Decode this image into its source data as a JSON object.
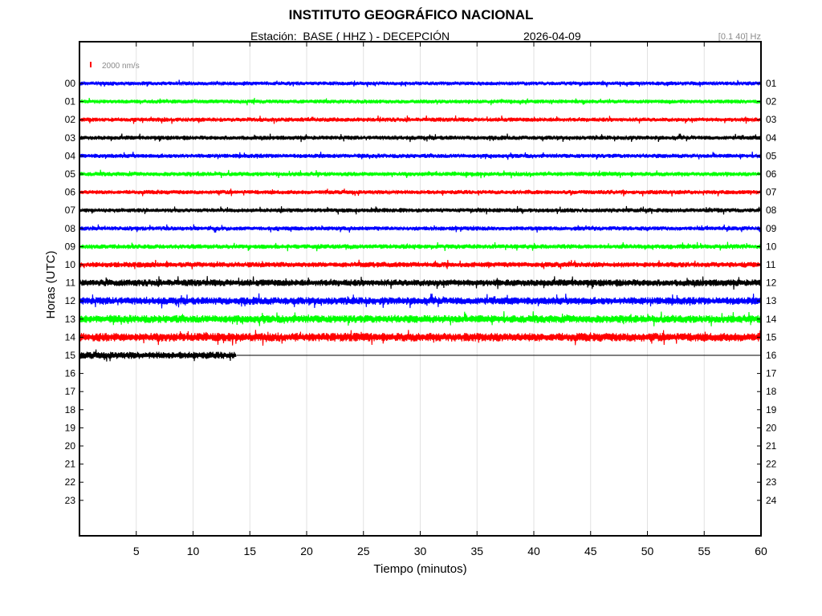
{
  "header": {
    "title": "INSTITUTO GEOGRÁFICO NACIONAL",
    "station": "Estación:  BASE ( HHZ ) - DECEPCIÓN",
    "date": "2026-04-09",
    "filter": "[0.1 40] Hz"
  },
  "chart_data": {
    "type": "line",
    "title": "INSTITUTO GEOGRÁFICO NACIONAL",
    "xlabel": "Tiempo (minutos)",
    "ylabel": "Horas (UTC)",
    "xlim": [
      0,
      60
    ],
    "x_ticks": [
      5,
      10,
      15,
      20,
      25,
      30,
      35,
      40,
      45,
      50,
      55,
      60
    ],
    "x_tick_labels": [
      "5",
      "10",
      "15",
      "20",
      "25",
      "30",
      "35",
      "40",
      "45",
      "50",
      "55",
      "60"
    ],
    "left_hour_labels": [
      "00",
      "01",
      "02",
      "03",
      "04",
      "05",
      "06",
      "07",
      "08",
      "09",
      "10",
      "11",
      "12",
      "13",
      "14",
      "15",
      "16",
      "17",
      "18",
      "19",
      "20",
      "21",
      "22",
      "23"
    ],
    "right_hour_labels": [
      "01",
      "02",
      "03",
      "04",
      "05",
      "06",
      "07",
      "08",
      "09",
      "10",
      "11",
      "12",
      "13",
      "14",
      "15",
      "16",
      "17",
      "18",
      "19",
      "20",
      "21",
      "22",
      "23",
      "24"
    ],
    "grid": "vertical",
    "scale_bar": {
      "label": "2000 nm/s",
      "color": "#ff0000"
    },
    "colors": [
      "#0000ff",
      "#00ff00",
      "#ff0000",
      "#000000"
    ],
    "traces": [
      {
        "hour": "00",
        "color": "#0000ff",
        "end_minute": 60,
        "relative_amplitude": 0.55
      },
      {
        "hour": "01",
        "color": "#00ff00",
        "end_minute": 60,
        "relative_amplitude": 0.55
      },
      {
        "hour": "02",
        "color": "#ff0000",
        "end_minute": 60,
        "relative_amplitude": 0.6
      },
      {
        "hour": "03",
        "color": "#000000",
        "end_minute": 60,
        "relative_amplitude": 0.6
      },
      {
        "hour": "04",
        "color": "#0000ff",
        "end_minute": 60,
        "relative_amplitude": 0.6
      },
      {
        "hour": "05",
        "color": "#00ff00",
        "end_minute": 60,
        "relative_amplitude": 0.6
      },
      {
        "hour": "06",
        "color": "#ff0000",
        "end_minute": 60,
        "relative_amplitude": 0.6
      },
      {
        "hour": "07",
        "color": "#000000",
        "end_minute": 60,
        "relative_amplitude": 0.6
      },
      {
        "hour": "08",
        "color": "#0000ff",
        "end_minute": 60,
        "relative_amplitude": 0.6
      },
      {
        "hour": "09",
        "color": "#00ff00",
        "end_minute": 60,
        "relative_amplitude": 0.65
      },
      {
        "hour": "10",
        "color": "#ff0000",
        "end_minute": 60,
        "relative_amplitude": 0.75
      },
      {
        "hour": "11",
        "color": "#000000",
        "end_minute": 60,
        "relative_amplitude": 0.95
      },
      {
        "hour": "12",
        "color": "#0000ff",
        "end_minute": 60,
        "relative_amplitude": 1.05
      },
      {
        "hour": "13",
        "color": "#00ff00",
        "end_minute": 60,
        "relative_amplitude": 1.1
      },
      {
        "hour": "14",
        "color": "#ff0000",
        "end_minute": 60,
        "relative_amplitude": 1.2
      },
      {
        "hour": "15",
        "color": "#000000",
        "end_minute": 13.8,
        "relative_amplitude": 1.0
      }
    ]
  }
}
